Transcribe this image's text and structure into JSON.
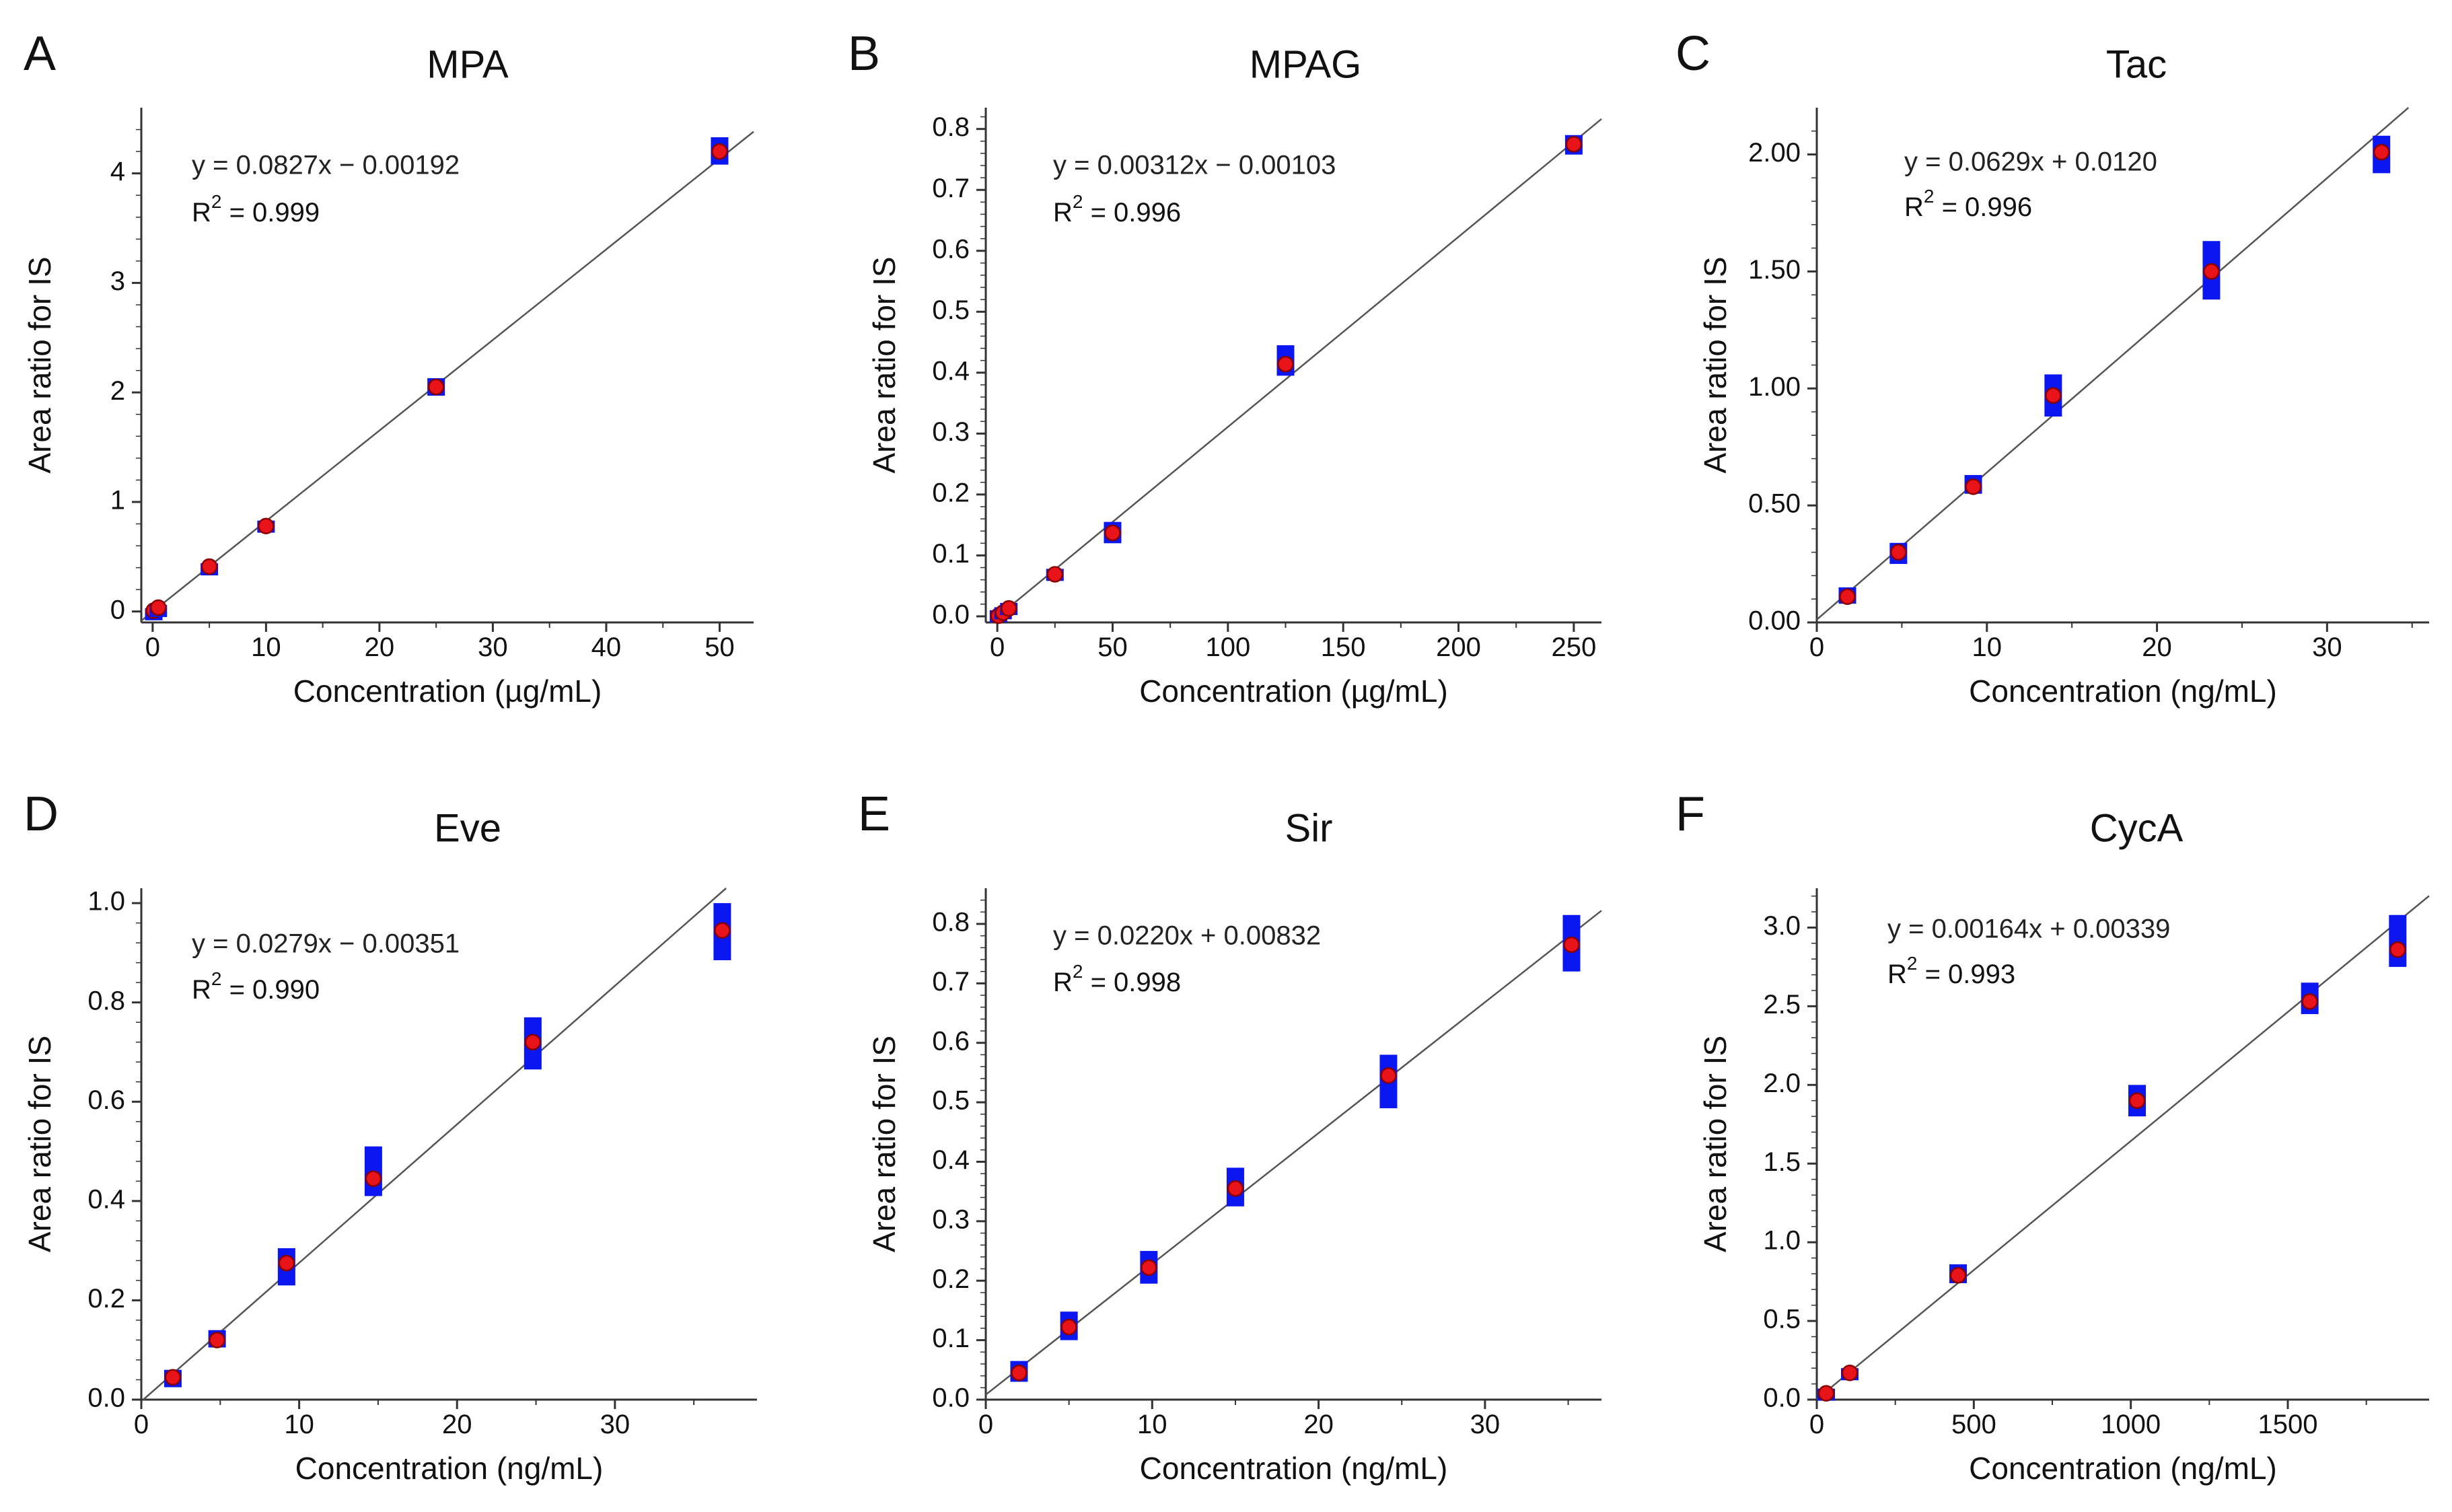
{
  "figure": {
    "marker_color": "#0a17f0",
    "mean_color": "#e8141a",
    "mean_edge_color": "#8a0000",
    "line_color": "#555555",
    "axis_color": "#333333",
    "ylabel": "Area ratio for IS"
  },
  "chart_data": [
    {
      "type": "scatter",
      "panel_letter": "A",
      "title": "MPA",
      "xlabel": "Concentration (µg/mL)",
      "ylabel": "Area ratio for IS",
      "xlim": [
        -1,
        53
      ],
      "ylim": [
        -0.1,
        4.6
      ],
      "xticks": [
        0,
        10,
        20,
        30,
        40,
        50
      ],
      "xtick_labels": [
        "0",
        "10",
        "20",
        "30",
        "40",
        "50"
      ],
      "yticks": [
        0,
        1,
        2,
        3,
        4
      ],
      "ytick_labels": [
        "0",
        "1",
        "2",
        "3",
        "4"
      ],
      "regression": {
        "slope": 0.0827,
        "intercept": -0.00192
      },
      "equation_text": "y = 0.0827x − 0.00192",
      "r2_label": "R",
      "r2_sup": "2",
      "r2_value": " = 0.999",
      "points": [
        {
          "x": 0.1,
          "mean": 0.008,
          "lo": -0.01,
          "hi": 0.03
        },
        {
          "x": 0.5,
          "mean": 0.035,
          "lo": 0.02,
          "hi": 0.06
        },
        {
          "x": 5,
          "mean": 0.41,
          "lo": 0.37,
          "hi": 0.44
        },
        {
          "x": 10,
          "mean": 0.78,
          "lo": 0.72,
          "hi": 0.83
        },
        {
          "x": 25,
          "mean": 2.05,
          "lo": 1.97,
          "hi": 2.13
        },
        {
          "x": 50,
          "mean": 4.2,
          "lo": 4.08,
          "hi": 4.33
        }
      ]
    },
    {
      "type": "scatter",
      "panel_letter": "B",
      "title": "MPAG",
      "xlabel": "Concentration (µg/mL)",
      "ylabel": "Area ratio for IS",
      "xlim": [
        -5,
        262
      ],
      "ylim": [
        -0.01,
        0.835
      ],
      "xticks": [
        0,
        50,
        100,
        150,
        200,
        250
      ],
      "xtick_labels": [
        "0",
        "50",
        "100",
        "150",
        "200",
        "250"
      ],
      "yticks": [
        0,
        0.1,
        0.2,
        0.3,
        0.4,
        0.5,
        0.6,
        0.7,
        0.8
      ],
      "ytick_labels": [
        "0.0",
        "0.1",
        "0.2",
        "0.3",
        "0.4",
        "0.5",
        "0.6",
        "0.7",
        "0.8"
      ],
      "regression": {
        "slope": 0.00312,
        "intercept": -0.00103
      },
      "equation_text": "y = 0.00312x − 0.00103",
      "r2_label": "R",
      "r2_sup": "2",
      "r2_value": " = 0.996",
      "points": [
        {
          "x": 0.5,
          "mean": 0.001,
          "lo": -0.006,
          "hi": 0.01
        },
        {
          "x": 2.5,
          "mean": 0.006,
          "lo": -0.004,
          "hi": 0.015
        },
        {
          "x": 5,
          "mean": 0.013,
          "lo": 0.005,
          "hi": 0.022
        },
        {
          "x": 25,
          "mean": 0.069,
          "lo": 0.06,
          "hi": 0.078
        },
        {
          "x": 50,
          "mean": 0.137,
          "lo": 0.12,
          "hi": 0.155
        },
        {
          "x": 125,
          "mean": 0.414,
          "lo": 0.395,
          "hi": 0.445
        },
        {
          "x": 250,
          "mean": 0.775,
          "lo": 0.758,
          "hi": 0.79
        }
      ]
    },
    {
      "type": "scatter",
      "panel_letter": "C",
      "title": "Tac",
      "xlabel": "Concentration (ng/mL)",
      "ylabel": "Area ratio for IS",
      "xlim": [
        0,
        36
      ],
      "ylim": [
        0,
        2.2
      ],
      "xticks": [
        0,
        10,
        20,
        30
      ],
      "xtick_labels": [
        "0",
        "10",
        "20",
        "30"
      ],
      "yticks": [
        0,
        0.5,
        1.0,
        1.5,
        2.0
      ],
      "ytick_labels": [
        "0.00",
        "0.50",
        "1.00",
        "1.50",
        "2.00"
      ],
      "regression": {
        "slope": 0.0629,
        "intercept": 0.012
      },
      "equation_text": "y = 0.0629x + 0.0120",
      "r2_label": "R",
      "r2_sup": "2",
      "r2_value": " = 0.996",
      "points": [
        {
          "x": 1.8,
          "mean": 0.11,
          "lo": 0.08,
          "hi": 0.15
        },
        {
          "x": 4.8,
          "mean": 0.3,
          "lo": 0.25,
          "hi": 0.34
        },
        {
          "x": 9.2,
          "mean": 0.58,
          "lo": 0.55,
          "hi": 0.63
        },
        {
          "x": 13.9,
          "mean": 0.97,
          "lo": 0.88,
          "hi": 1.06
        },
        {
          "x": 23.2,
          "mean": 1.5,
          "lo": 1.38,
          "hi": 1.63
        },
        {
          "x": 33.2,
          "mean": 2.01,
          "lo": 1.92,
          "hi": 2.08
        }
      ]
    },
    {
      "type": "scatter",
      "panel_letter": "D",
      "title": "Eve",
      "xlabel": "Concentration (ng/mL)",
      "ylabel": "Area ratio for IS",
      "xlim": [
        0,
        39
      ],
      "ylim": [
        0,
        1.03
      ],
      "xticks": [
        0,
        10,
        20,
        30
      ],
      "xtick_labels": [
        "0",
        "10",
        "20",
        "30"
      ],
      "yticks": [
        0,
        0.2,
        0.4,
        0.6,
        0.8,
        1.0
      ],
      "ytick_labels": [
        "0.0",
        "0.2",
        "0.4",
        "0.6",
        "0.8",
        "1.0"
      ],
      "regression": {
        "slope": 0.0279,
        "intercept": -0.00351
      },
      "equation_text": "y = 0.0279x − 0.00351",
      "r2_label": "R",
      "r2_sup": "2",
      "r2_value": " = 0.990",
      "points": [
        {
          "x": 2.0,
          "mean": 0.045,
          "lo": 0.025,
          "hi": 0.06
        },
        {
          "x": 4.8,
          "mean": 0.12,
          "lo": 0.105,
          "hi": 0.14
        },
        {
          "x": 9.2,
          "mean": 0.275,
          "lo": 0.23,
          "hi": 0.305
        },
        {
          "x": 14.7,
          "mean": 0.445,
          "lo": 0.41,
          "hi": 0.51
        },
        {
          "x": 24.8,
          "mean": 0.72,
          "lo": 0.665,
          "hi": 0.77
        },
        {
          "x": 36.8,
          "mean": 0.945,
          "lo": 0.885,
          "hi": 1.0
        }
      ]
    },
    {
      "type": "scatter",
      "panel_letter": "E",
      "title": "Sir",
      "xlabel": "Concentration (ng/mL)",
      "ylabel": "Area ratio for IS",
      "xlim": [
        0,
        37
      ],
      "ylim": [
        0,
        0.86
      ],
      "xticks": [
        0,
        10,
        20,
        30
      ],
      "xtick_labels": [
        "0",
        "10",
        "20",
        "30"
      ],
      "yticks": [
        0,
        0.1,
        0.2,
        0.3,
        0.4,
        0.5,
        0.6,
        0.7,
        0.8
      ],
      "ytick_labels": [
        "0.0",
        "0.1",
        "0.2",
        "0.3",
        "0.4",
        "0.5",
        "0.6",
        "0.7",
        "0.8"
      ],
      "regression": {
        "slope": 0.022,
        "intercept": 0.00832
      },
      "equation_text": "y = 0.0220x + 0.00832",
      "r2_label": "R",
      "r2_sup": "2",
      "r2_value": " = 0.998",
      "points": [
        {
          "x": 2.0,
          "mean": 0.045,
          "lo": 0.03,
          "hi": 0.065
        },
        {
          "x": 5.0,
          "mean": 0.122,
          "lo": 0.1,
          "hi": 0.148
        },
        {
          "x": 9.8,
          "mean": 0.222,
          "lo": 0.195,
          "hi": 0.25
        },
        {
          "x": 15.0,
          "mean": 0.355,
          "lo": 0.325,
          "hi": 0.39
        },
        {
          "x": 24.2,
          "mean": 0.545,
          "lo": 0.49,
          "hi": 0.58
        },
        {
          "x": 35.2,
          "mean": 0.765,
          "lo": 0.72,
          "hi": 0.815
        }
      ]
    },
    {
      "type": "scatter",
      "panel_letter": "F",
      "title": "CycA",
      "xlabel": "Concentration (ng/mL)",
      "ylabel": "Area ratio for IS",
      "xlim": [
        0,
        1950
      ],
      "ylim": [
        0,
        3.25
      ],
      "xticks": [
        0,
        500,
        1000,
        1500
      ],
      "xtick_labels": [
        "0",
        "500",
        "1000",
        "1500"
      ],
      "yticks": [
        0,
        0.5,
        1.0,
        1.5,
        2.0,
        2.5,
        3.0
      ],
      "ytick_labels": [
        "0.0",
        "0.5",
        "1.0",
        "1.5",
        "2.0",
        "2.5",
        "3.0"
      ],
      "regression": {
        "slope": 0.00164,
        "intercept": 0.00339
      },
      "equation_text": "y = 0.00164x + 0.00339",
      "r2_label": "R",
      "r2_sup": "2",
      "r2_value": " = 0.993",
      "points": [
        {
          "x": 30,
          "mean": 0.04,
          "lo": 0.0,
          "hi": 0.07
        },
        {
          "x": 105,
          "mean": 0.17,
          "lo": 0.14,
          "hi": 0.2
        },
        {
          "x": 450,
          "mean": 0.79,
          "lo": 0.74,
          "hi": 0.86
        },
        {
          "x": 1020,
          "mean": 1.9,
          "lo": 1.8,
          "hi": 2.0
        },
        {
          "x": 1570,
          "mean": 2.53,
          "lo": 2.45,
          "hi": 2.65
        },
        {
          "x": 1850,
          "mean": 2.86,
          "lo": 2.75,
          "hi": 3.08
        }
      ]
    }
  ]
}
